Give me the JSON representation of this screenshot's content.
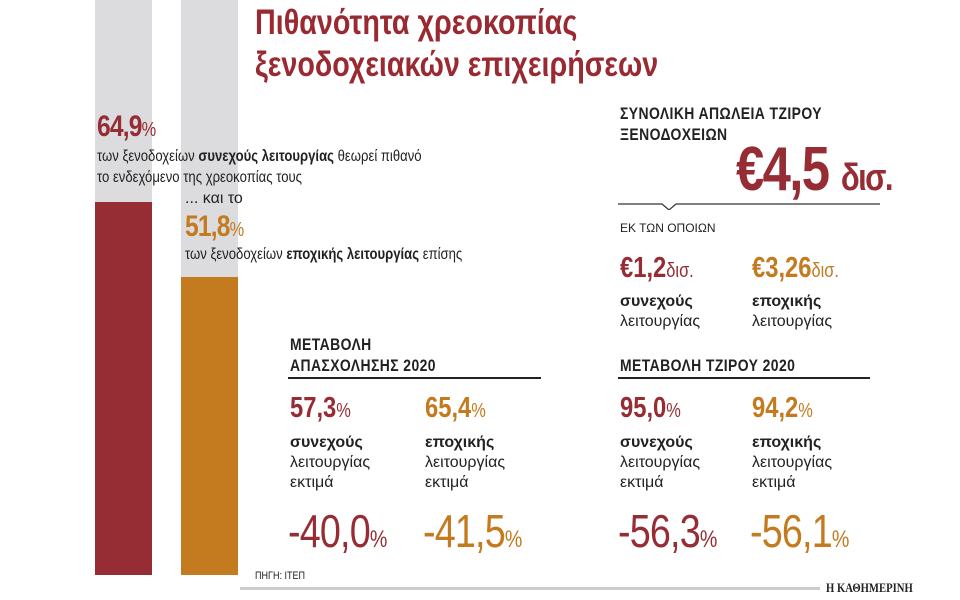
{
  "title": [
    "Πιθανότητα χρεοκοπίας",
    "ξενοδοχειακών επιχειρήσεων"
  ],
  "colors": {
    "continuous": "#962c34",
    "seasonal": "#c47a1e",
    "track": "#dcdcde"
  },
  "chart_data": {
    "type": "bar",
    "orientation": "vertical",
    "categories": [
      "συνεχούς λειτουργίας",
      "εποχικής λειτουργίας"
    ],
    "values": [
      64.9,
      51.8
    ],
    "ylim": [
      0,
      100
    ],
    "unit": "%",
    "grid": false
  },
  "bankruptcy": {
    "continuous": {
      "value": "64,9",
      "pct": "%",
      "text_pre": "των ξενοδοχείων ",
      "text_bold": "συνεχούς λειτουργίας",
      "text_post": " θεωρεί πιθανό",
      "line2": "το ενδεχόμενο της χρεοκοπίας τους"
    },
    "connector": "... και το",
    "seasonal": {
      "value": "51,8",
      "pct": "%",
      "text_pre": "των ξενοδοχείων ",
      "text_bold": "εποχικής λειτουργίας",
      "text_post": " επίσης"
    }
  },
  "turnover_loss": {
    "heading": [
      "ΣΥΝΟΛΙΚΗ ΑΠΩΛΕΙΑ ΤΖΙΡΟΥ",
      "ΞΕΝΟΔΟΧΕΙΩΝ"
    ],
    "total": "€4,5",
    "unit": "δισ.",
    "of_which": "ΕΚ ΤΩΝ ΟΠΟΙΩΝ",
    "items": [
      {
        "value": "€1,2",
        "unit": "δισ.",
        "l1": "συνεχούς",
        "l2": "λειτουργίας"
      },
      {
        "value": "€3,26",
        "unit": "δισ.",
        "l1": "εποχικής",
        "l2": "λειτουργίας"
      }
    ]
  },
  "employment": {
    "heading": [
      "ΜΕΤΑΒΟΛΗ",
      "ΑΠΑΣΧΟΛΗΣΗΣ 2020"
    ],
    "items": [
      {
        "value": "57,3",
        "pct": "%",
        "l1": "συνεχούς",
        "l2": "λειτουργίας",
        "l3": "εκτιμά",
        "change": "-40,0",
        "cpct": "%"
      },
      {
        "value": "65,4",
        "pct": "%",
        "l1": "εποχικής",
        "l2": "λειτουργίας",
        "l3": "εκτιμά",
        "change": "-41,5",
        "cpct": "%"
      }
    ]
  },
  "turnover": {
    "heading": "ΜΕΤΑΒΟΛΗ ΤΖΙΡΟΥ 2020",
    "items": [
      {
        "value": "95,0",
        "pct": "%",
        "l1": "συνεχούς",
        "l2": "λειτουργίας",
        "l3": "εκτιμά",
        "change": "-56,3",
        "cpct": "%"
      },
      {
        "value": "94,2",
        "pct": "%",
        "l1": "εποχικής",
        "l2": "λειτουργίας",
        "l3": "εκτιμά",
        "change": "-56,1",
        "cpct": "%"
      }
    ]
  },
  "source": "ΠΗΓΗ: ΙΤΕΠ",
  "brand": "Η ΚΑΘΗΜΕΡΙΝΗ"
}
